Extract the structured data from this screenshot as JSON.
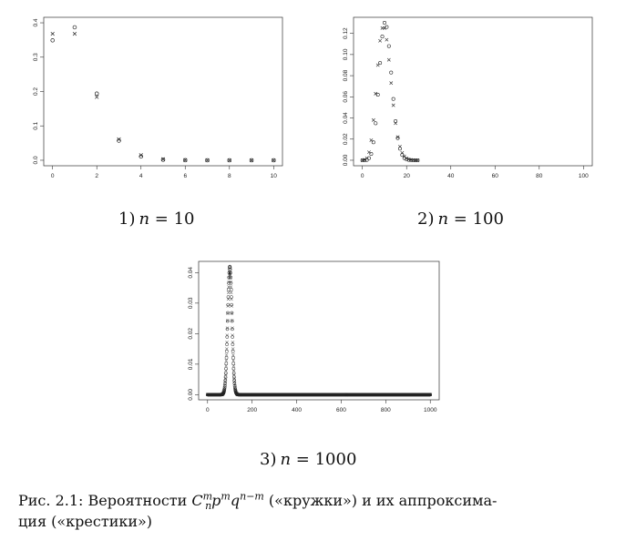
{
  "chart_data": [
    {
      "type": "scatter",
      "id": "n10",
      "label_prefix": "1)",
      "label_var": "n",
      "label_value": "10",
      "xlim": [
        0,
        10
      ],
      "ylim": [
        0,
        0.4
      ],
      "xticks": [
        "0",
        "2",
        "4",
        "6",
        "8",
        "10"
      ],
      "yticks": [
        "0.0",
        "0.1",
        "0.2",
        "0.3",
        "0.4"
      ],
      "series": [
        {
          "marker": "circle",
          "x": [
            0,
            1,
            2,
            3,
            4,
            5,
            6,
            7,
            8,
            9,
            10
          ],
          "y": [
            0.349,
            0.387,
            0.194,
            0.057,
            0.011,
            0.0015,
            0.0001,
            0,
            0,
            0,
            0
          ]
        },
        {
          "marker": "cross",
          "x": [
            0,
            1,
            2,
            3,
            4,
            5,
            6,
            7,
            8,
            9,
            10
          ],
          "y": [
            0.368,
            0.368,
            0.184,
            0.061,
            0.015,
            0.003,
            0.0005,
            0.0001,
            0,
            0,
            0
          ]
        }
      ]
    },
    {
      "type": "scatter",
      "id": "n100",
      "label_prefix": "2)",
      "label_var": "n",
      "label_value": "100",
      "xlim": [
        0,
        100
      ],
      "ylim": [
        0,
        0.13
      ],
      "xticks": [
        "0",
        "20",
        "40",
        "60",
        "80",
        "100"
      ],
      "yticks": [
        "0.00",
        "0.02",
        "0.04",
        "0.06",
        "0.08",
        "0.10",
        "0.12"
      ],
      "series": [
        {
          "marker": "circle",
          "x": [
            0,
            1,
            2,
            3,
            4,
            5,
            6,
            7,
            8,
            9,
            10,
            11,
            12,
            13,
            14,
            15,
            16,
            17,
            18,
            19,
            20,
            21,
            22,
            23,
            24,
            25
          ],
          "y": [
            0,
            0,
            0.0003,
            0.002,
            0.006,
            0.017,
            0.035,
            0.062,
            0.092,
            0.117,
            0.13,
            0.126,
            0.108,
            0.083,
            0.058,
            0.037,
            0.021,
            0.011,
            0.005,
            0.002,
            0.0009,
            0.0003,
            0.0001,
            0,
            0,
            0
          ]
        },
        {
          "marker": "cross",
          "x": [
            0,
            1,
            2,
            3,
            4,
            5,
            6,
            7,
            8,
            9,
            10,
            11,
            12,
            13,
            14,
            15,
            16,
            17,
            18,
            19,
            20,
            21,
            22,
            23,
            24,
            25
          ],
          "y": [
            0,
            0.0005,
            0.002,
            0.0076,
            0.019,
            0.038,
            0.063,
            0.09,
            0.113,
            0.125,
            0.125,
            0.114,
            0.095,
            0.073,
            0.052,
            0.035,
            0.022,
            0.013,
            0.007,
            0.0037,
            0.0019,
            0.0009,
            0.0004,
            0.0002,
            0,
            0
          ]
        }
      ]
    },
    {
      "type": "scatter",
      "id": "n1000",
      "label_prefix": "3)",
      "label_var": "n",
      "label_value": "1000",
      "xlim": [
        0,
        1000
      ],
      "ylim": [
        0,
        0.042
      ],
      "xticks": [
        "0",
        "200",
        "400",
        "600",
        "800",
        "1000"
      ],
      "yticks": [
        "0.00",
        "0.01",
        "0.02",
        "0.03",
        "0.04"
      ],
      "series": [
        {
          "marker": "circle",
          "peak_x": 100,
          "peak_y": 0.042,
          "sd": 9.5
        },
        {
          "marker": "cross",
          "peak_x": 100,
          "peak_y": 0.04,
          "sd": 10
        }
      ]
    }
  ],
  "caption": {
    "prefix": "Рис. 2.1: Вероятности ",
    "formula_C": "C",
    "formula_C_sup": "m",
    "formula_C_sub": "n",
    "formula_p": "p",
    "formula_p_sup": "m",
    "formula_q": "q",
    "formula_q_sup": "n−m",
    "suffix_line1": " («кружки») и их аппроксима-",
    "line2": "ция («крестики»)"
  }
}
